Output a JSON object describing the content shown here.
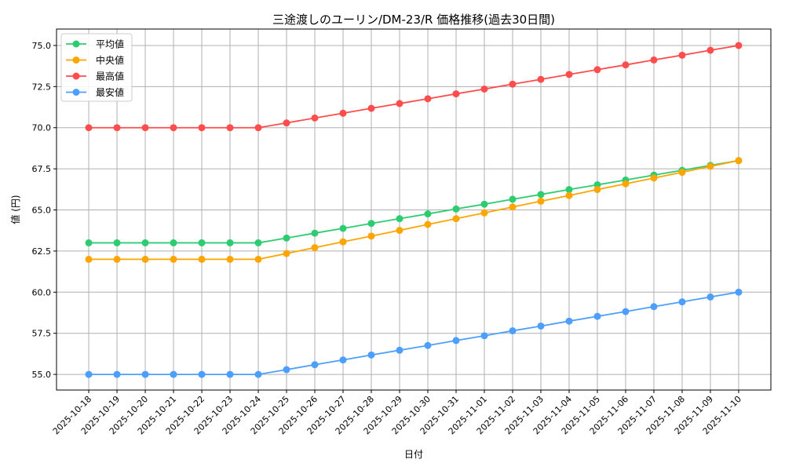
{
  "chart_data": {
    "type": "line",
    "title": "三途渡しのユーリン/DM-23/R 価格推移(過去30日間)",
    "xlabel": "日付",
    "ylabel": "値 (円)",
    "ylim": [
      54.05,
      76.0
    ],
    "yticks": [
      55.0,
      57.5,
      60.0,
      62.5,
      65.0,
      67.5,
      70.0,
      72.5,
      75.0
    ],
    "ytick_labels": [
      "55.0",
      "57.5",
      "60.0",
      "62.5",
      "65.0",
      "67.5",
      "70.0",
      "72.5",
      "75.0"
    ],
    "grid": true,
    "legend_position": "top-left",
    "x": [
      "2025-10-18",
      "2025-10-19",
      "2025-10-20",
      "2025-10-21",
      "2025-10-22",
      "2025-10-23",
      "2025-10-24",
      "2025-10-25",
      "2025-10-26",
      "2025-10-27",
      "2025-10-28",
      "2025-10-29",
      "2025-10-30",
      "2025-10-31",
      "2025-11-01",
      "2025-11-02",
      "2025-11-03",
      "2025-11-04",
      "2025-11-05",
      "2025-11-06",
      "2025-11-07",
      "2025-11-08",
      "2025-11-09",
      "2025-11-10"
    ],
    "series": [
      {
        "name": "平均値",
        "color": "#2ecc71",
        "values": [
          63,
          63,
          63,
          63,
          63,
          63,
          63,
          63.29,
          63.59,
          63.88,
          64.18,
          64.47,
          64.76,
          65.06,
          65.35,
          65.65,
          65.94,
          66.24,
          66.53,
          66.82,
          67.12,
          67.41,
          67.71,
          68
        ]
      },
      {
        "name": "中央値",
        "color": "#ffa500",
        "values": [
          62,
          62,
          62,
          62,
          62,
          62,
          62,
          62.35,
          62.71,
          63.06,
          63.41,
          63.76,
          64.12,
          64.47,
          64.82,
          65.18,
          65.53,
          65.88,
          66.24,
          66.59,
          66.94,
          67.29,
          67.65,
          68
        ]
      },
      {
        "name": "最高値",
        "color": "#ff4d4d",
        "values": [
          70,
          70,
          70,
          70,
          70,
          70,
          70,
          70.29,
          70.59,
          70.88,
          71.18,
          71.47,
          71.76,
          72.06,
          72.35,
          72.65,
          72.94,
          73.24,
          73.53,
          73.82,
          74.12,
          74.41,
          74.71,
          75
        ]
      },
      {
        "name": "最安値",
        "color": "#4d9fff",
        "values": [
          55,
          55,
          55,
          55,
          55,
          55,
          55,
          55.29,
          55.59,
          55.88,
          56.18,
          56.47,
          56.76,
          57.06,
          57.35,
          57.65,
          57.94,
          58.24,
          58.53,
          58.82,
          59.12,
          59.41,
          59.71,
          60
        ]
      }
    ]
  }
}
